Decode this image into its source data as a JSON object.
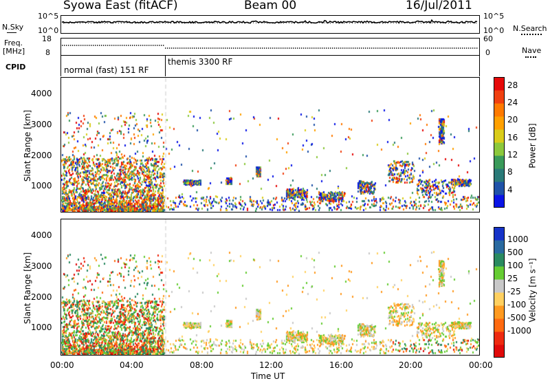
{
  "header": {
    "station": "Syowa East (fitACF)",
    "beam": "Beam 00",
    "date": "16/Jul/2011"
  },
  "left_labels": {
    "nsky": "N.Sky",
    "freq_line1": "Freq.",
    "freq_line2": "[MHz]",
    "cpid": "CPID"
  },
  "right_labels": {
    "nsearch": "N.Search",
    "nave": "Nave"
  },
  "noise_panel": {
    "left_ticks": [
      "10^5",
      "10^0"
    ],
    "right_ticks": [
      "10^5",
      "10^0"
    ]
  },
  "freq_panel": {
    "left_ticks": [
      "18",
      "8"
    ],
    "right_ticks": [
      "60",
      "0"
    ]
  },
  "cpid_panel": {
    "segments": [
      {
        "label": "normal (fast) 151 RF",
        "start_hour": 0,
        "end_hour": 6
      },
      {
        "label": "themis 3300 RF",
        "start_hour": 6,
        "end_hour": 24
      }
    ]
  },
  "x_axis": {
    "label": "Time UT",
    "ticks": [
      "00:00",
      "04:00",
      "08:00",
      "12:00",
      "16:00",
      "20:00",
      "00:00"
    ],
    "range_hours": [
      0,
      24
    ]
  },
  "chart_data": [
    {
      "type": "heatmap",
      "name": "power",
      "ylabel": "Slant Range [km]",
      "yticks": [
        "1000",
        "2000",
        "3000",
        "4000"
      ],
      "ylim": [
        180,
        4500
      ],
      "xlim_hours": [
        0,
        24
      ],
      "colorbar": {
        "label": "Power [dB]",
        "ticks": [
          "4",
          "8",
          "12",
          "16",
          "20",
          "24",
          "28"
        ],
        "range": [
          0,
          30
        ],
        "colors": [
          "#0a14e6",
          "#1f52a8",
          "#2a7a78",
          "#3a9a5a",
          "#8cc83c",
          "#d9cc1a",
          "#ffa000",
          "#ff7a00",
          "#f04010",
          "#e60a0a"
        ]
      }
    },
    {
      "type": "heatmap",
      "name": "velocity",
      "ylabel": "Slant Range [km]",
      "yticks": [
        "1000",
        "2000",
        "3000",
        "4000"
      ],
      "ylim": [
        180,
        4500
      ],
      "xlim_hours": [
        0,
        24
      ],
      "colorbar": {
        "label": "Velocity [m s⁻¹]",
        "ticks": [
          "1000",
          "500",
          "100",
          "25",
          "-25",
          "-100",
          "-500",
          "-1000"
        ],
        "colors": [
          "#1633c8",
          "#2a6aa0",
          "#2a8a60",
          "#66cc33",
          "#c8c8c8",
          "#ffd060",
          "#ff9a20",
          "#ff6a10",
          "#ee2a10",
          "#e00a0a"
        ]
      }
    }
  ]
}
